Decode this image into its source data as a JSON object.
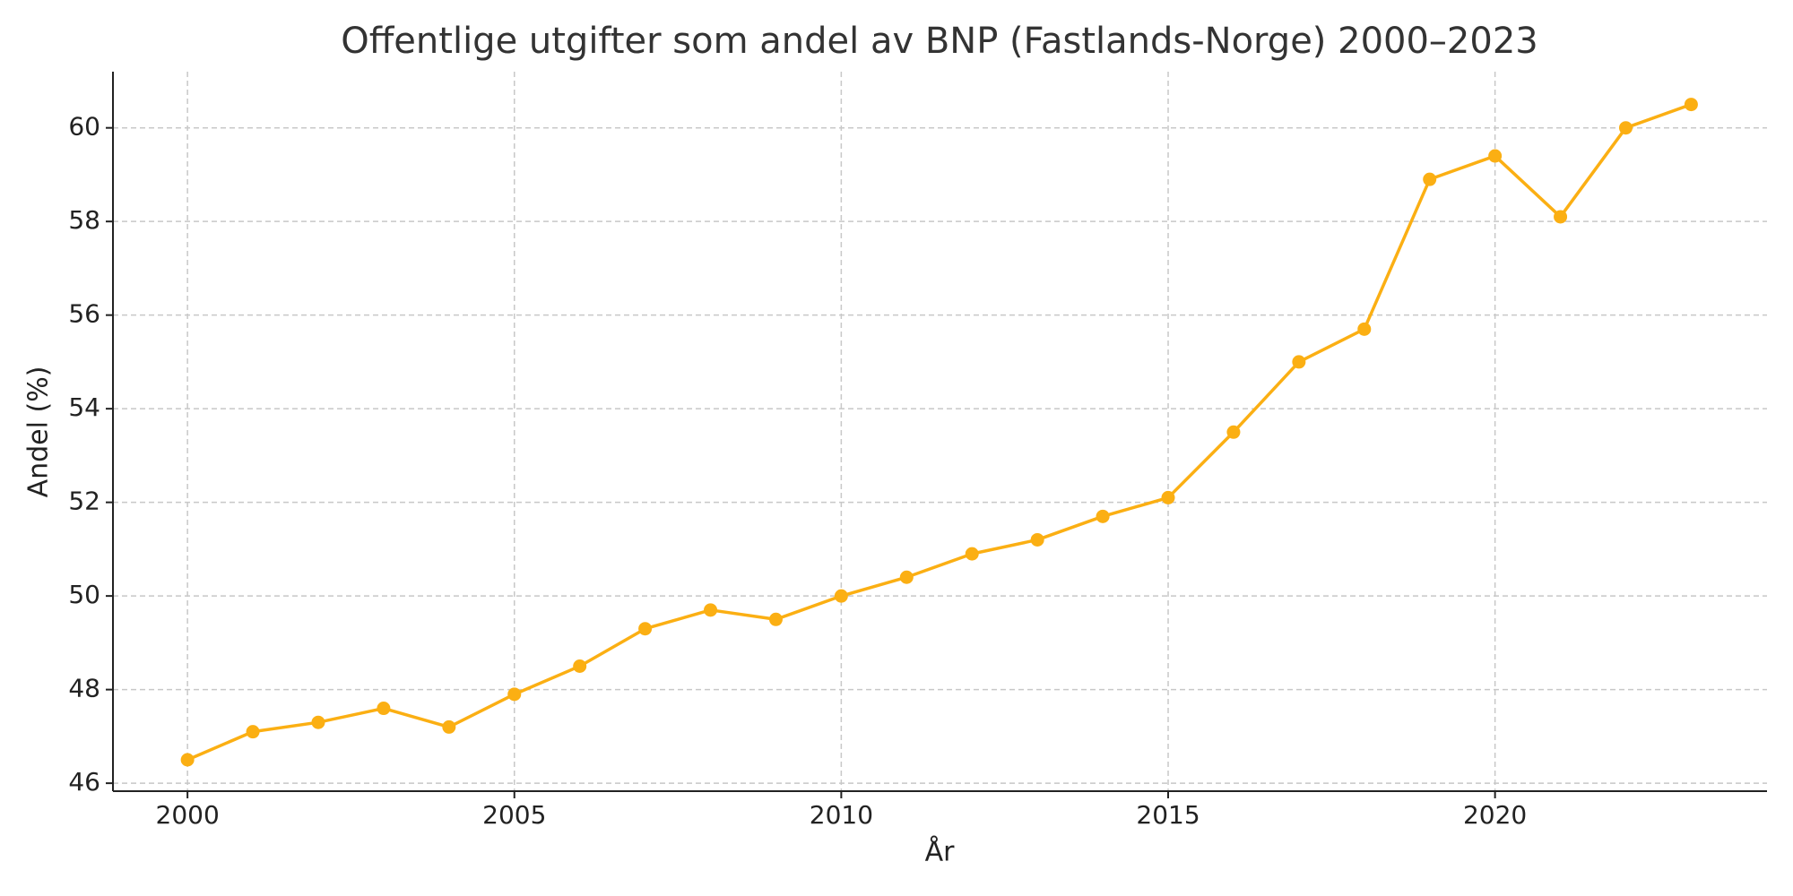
{
  "chart_data": {
    "type": "line",
    "title": "Offentlige utgifter som andel av BNP (Fastlands-Norge) 2000–2023",
    "x_label": "År",
    "y_label": "Andel (%)",
    "x": [
      2000,
      2001,
      2002,
      2003,
      2004,
      2005,
      2006,
      2007,
      2008,
      2009,
      2010,
      2011,
      2012,
      2013,
      2014,
      2015,
      2016,
      2017,
      2018,
      2019,
      2020,
      2021,
      2022,
      2023
    ],
    "series": [
      {
        "name": "Andel",
        "color": "#fbaf13",
        "values": [
          46.5,
          47.1,
          47.3,
          47.6,
          47.2,
          47.9,
          48.5,
          49.3,
          49.7,
          49.5,
          50.0,
          50.4,
          50.9,
          51.2,
          51.7,
          52.1,
          53.5,
          55.0,
          55.7,
          58.9,
          59.4,
          58.1,
          60.0,
          60.5
        ]
      }
    ],
    "xlim": [
      1998.86,
      2024.16
    ],
    "xticks": [
      2000,
      2005,
      2010,
      2015,
      2020
    ],
    "ylim": [
      45.83,
      61.2
    ],
    "yticks": [
      46,
      48,
      50,
      52,
      54,
      56,
      58,
      60
    ],
    "grid": true
  }
}
